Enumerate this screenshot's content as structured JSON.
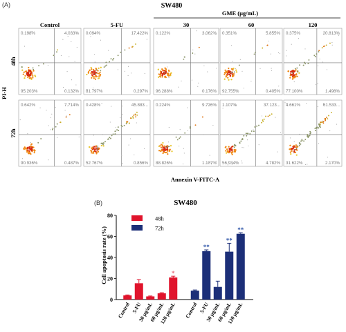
{
  "figure": {
    "panel_a_label": "(A)",
    "panel_b_label": "(B)",
    "cell_line": "SW480",
    "group_label": "GME (μg/mL)",
    "column_headers": [
      "Control",
      "5-FU",
      "30",
      "60",
      "120"
    ],
    "row_labels": [
      "48h",
      "72h"
    ],
    "y_axis_label": "PI-H",
    "x_axis_label": "Annexin V-FITC-A"
  },
  "flow_plots": [
    [
      {
        "ul": "0.198%",
        "ur": "4.033%",
        "ll": "95.203%",
        "lr": "0.132%"
      },
      {
        "ul": "0.094%",
        "ur": "17.422%",
        "ll": "81.797%",
        "lr": "0.297%"
      },
      {
        "ul": "0.122%",
        "ur": "3.062%",
        "ll": "96.288%",
        "lr": "0.176%"
      },
      {
        "ul": "0.351%",
        "ur": "5.855%",
        "ll": "92.755%",
        "lr": "0.405%"
      },
      {
        "ul": "0.375%",
        "ur": "20.813%",
        "ll": "77.100%",
        "lr": "1.498%"
      }
    ],
    [
      {
        "ul": "0.642%",
        "ur": "7.714%",
        "ll": "90.936%",
        "lr": "0.487%"
      },
      {
        "ul": "0.428%",
        "ur": "45.883...",
        "ll": "52.767%",
        "lr": "0.856%"
      },
      {
        "ul": "0.224%",
        "ur": "9.726%",
        "ll": "88.826%",
        "lr": "1.107%"
      },
      {
        "ul": "1.107%",
        "ur": "37.123...",
        "ll": "56.934%",
        "lr": "4.782%"
      },
      {
        "ul": "4.661%",
        "ur": "61.533...",
        "ll": "31.622%",
        "lr": "2.170%"
      }
    ]
  ],
  "chart_data": {
    "type": "bar",
    "title": "SW480",
    "ylabel": "Cell apoptosis rate (%)",
    "xlabel": "",
    "ylim": [
      0,
      80
    ],
    "yticks": [
      0,
      20,
      40,
      60,
      80
    ],
    "legend_position": "top-left",
    "categories": [
      "Control",
      "5-FU",
      "30 μg/mL",
      "60 μg/mL",
      "120 μg/mL"
    ],
    "series": [
      {
        "name": "48h",
        "color": "#e0142c",
        "values": [
          4,
          15.5,
          3,
          6,
          21
        ],
        "errors": [
          0.4,
          3.5,
          0.4,
          0.5,
          1.2
        ],
        "marks": [
          "",
          "",
          "",
          "",
          "*"
        ],
        "mark_color": "#e8707e"
      },
      {
        "name": "72h",
        "color": "#1c2f78",
        "values": [
          8.5,
          46,
          12,
          45.5,
          62.5
        ],
        "errors": [
          0.6,
          1.2,
          5.5,
          8,
          1
        ],
        "marks": [
          "",
          "**",
          "",
          "**",
          "**"
        ],
        "mark_color": "#2d54a8"
      }
    ]
  }
}
